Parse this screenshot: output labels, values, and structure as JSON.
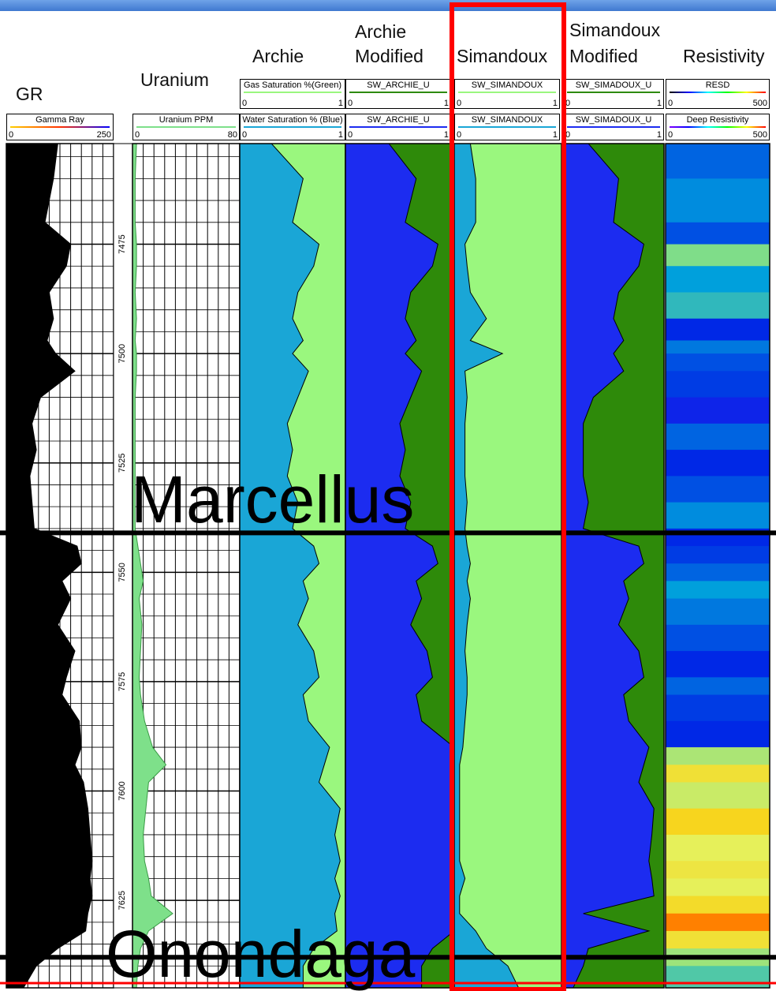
{
  "titles": {
    "gr": "GR",
    "uranium": "Uranium",
    "archie": "Archie",
    "archie_mod_1": "Archie",
    "archie_mod_2": "Modified",
    "simandoux": "Simandoux",
    "siman_mod_1": "Simandoux",
    "siman_mod_2": "Modified",
    "resistivity": "Resistivity"
  },
  "headers": {
    "gamma": {
      "name": "Gamma Ray",
      "min": "0",
      "max": "250"
    },
    "uranium": {
      "name": "Uranium PPM",
      "min": "0",
      "max": "80"
    },
    "archie_gas": {
      "name": "Gas Saturation %(Green)",
      "min": "0",
      "max": "1"
    },
    "archie_water": {
      "name": "Water Saturation % (Blue)",
      "min": "0",
      "max": "1"
    },
    "archie_mod_a": {
      "name": "SW_ARCHIE_U",
      "min": "0",
      "max": "1"
    },
    "archie_mod_b": {
      "name": "SW_ARCHIE_U",
      "min": "0",
      "max": "1"
    },
    "siman_a": {
      "name": "SW_SIMANDOUX",
      "min": "0",
      "max": "1"
    },
    "siman_b": {
      "name": "SW_SIMANDOUX",
      "min": "0",
      "max": "1"
    },
    "siman_mod_a": {
      "name": "SW_SIMADOUX_U",
      "min": "0",
      "max": "1"
    },
    "siman_mod_b": {
      "name": "SW_SIMADOUX_U",
      "min": "0",
      "max": "1"
    },
    "resd": {
      "name": "RESD",
      "min": "0",
      "max": "500"
    },
    "deep_res": {
      "name": "Deep Resistivity",
      "min": "0",
      "max": "500"
    }
  },
  "zones": {
    "marcellus": "Marcellus",
    "onondaga": "Onondaga"
  },
  "colors": {
    "gamma_fill": "#000000",
    "uranium_fill": "#7ee08a",
    "archie_water": "#1aa6d6",
    "gas_green": "#9af77e",
    "archie_mod_water": "#1c2cf0",
    "dark_green": "#2e8a0a",
    "highlight": "#ff0000",
    "formation_line": "#000000"
  },
  "chart_data": {
    "type": "area",
    "y_axis": "depth",
    "ylim": [
      7452,
      7645
    ],
    "depth_ticks": [
      7475,
      7500,
      7525,
      7550,
      7575,
      7600,
      7625
    ],
    "formation_tops": [
      {
        "name": "Marcellus",
        "depth": 7541
      },
      {
        "name": "Onondaga",
        "depth": 7638
      }
    ],
    "depth": [
      7452,
      7460,
      7470,
      7475,
      7480,
      7486,
      7492,
      7497,
      7500,
      7504,
      7510,
      7516,
      7522,
      7528,
      7534,
      7540,
      7544,
      7548,
      7552,
      7556,
      7562,
      7568,
      7574,
      7578,
      7584,
      7590,
      7594,
      7598,
      7604,
      7610,
      7616,
      7620,
      7624,
      7628,
      7632,
      7636,
      7640,
      7645
    ],
    "series": [
      {
        "name": "Gamma Ray",
        "xlim": [
          0,
          250
        ],
        "values": [
          120,
          110,
          90,
          150,
          140,
          100,
          110,
          95,
          115,
          160,
          80,
          60,
          70,
          55,
          60,
          65,
          165,
          175,
          130,
          150,
          120,
          160,
          140,
          130,
          170,
          175,
          160,
          180,
          190,
          195,
          200,
          195,
          200,
          190,
          185,
          120,
          70,
          40
        ]
      },
      {
        "name": "Uranium PPM",
        "xlim": [
          0,
          80
        ],
        "values": [
          3,
          2,
          2,
          3,
          3,
          2,
          3,
          2,
          3,
          3,
          2,
          2,
          2,
          2,
          2,
          2,
          4,
          6,
          8,
          5,
          7,
          6,
          5,
          6,
          9,
          15,
          25,
          12,
          10,
          8,
          9,
          12,
          14,
          30,
          12,
          6,
          4,
          3
        ]
      },
      {
        "name": "Gas Saturation %(Green)",
        "xlim": [
          0,
          1
        ],
        "values": [
          0.3,
          0.6,
          0.5,
          0.75,
          0.7,
          0.55,
          0.5,
          0.6,
          0.5,
          0.65,
          0.55,
          0.45,
          0.5,
          0.45,
          0.55,
          0.5,
          0.7,
          0.75,
          0.6,
          0.65,
          0.55,
          0.7,
          0.75,
          0.6,
          0.65,
          0.85,
          0.8,
          0.75,
          0.95,
          0.9,
          0.95,
          0.9,
          0.95,
          0.9,
          0.92,
          0.7,
          0.6,
          0.6
        ]
      },
      {
        "name": "SW_ARCHIE_U",
        "xlim": [
          0,
          1
        ],
        "values": [
          0.4,
          0.65,
          0.55,
          0.85,
          0.8,
          0.6,
          0.55,
          0.65,
          0.55,
          0.7,
          0.6,
          0.5,
          0.55,
          0.5,
          0.6,
          0.55,
          0.8,
          0.85,
          0.65,
          0.7,
          0.6,
          0.75,
          0.8,
          0.65,
          0.7,
          1,
          1,
          1,
          1,
          1,
          1,
          1,
          1,
          1,
          1,
          0.8,
          0.7,
          0.7
        ]
      },
      {
        "name": "SW_SIMANDOUX",
        "xlim": [
          0,
          1
        ],
        "values": [
          0.15,
          0.2,
          0.2,
          0.1,
          0.12,
          0.15,
          0.3,
          0.15,
          0.45,
          0.1,
          0.12,
          0.1,
          0.1,
          0.1,
          0.12,
          0.1,
          0.12,
          0.15,
          0.12,
          0.15,
          0.12,
          0.1,
          0.12,
          0.12,
          0.1,
          0.08,
          0.05,
          0.05,
          0.05,
          0.05,
          0.05,
          0.1,
          0.05,
          0.05,
          0.2,
          0.3,
          0.5,
          0.6
        ]
      },
      {
        "name": "SW_SIMADOUX_U",
        "xlim": [
          0,
          1
        ],
        "values": [
          0.25,
          0.55,
          0.5,
          0.8,
          0.75,
          0.55,
          0.5,
          0.6,
          0.5,
          0.6,
          0.3,
          0.2,
          0.2,
          0.2,
          0.25,
          0.2,
          0.75,
          0.8,
          0.6,
          0.65,
          0.55,
          0.75,
          0.8,
          0.6,
          0.65,
          0.85,
          0.8,
          0.75,
          0.9,
          0.88,
          0.85,
          0.88,
          0.9,
          0.2,
          0.85,
          0.25,
          0.2,
          0.1
        ]
      },
      {
        "name": "Deep Resistivity",
        "xlim": [
          0,
          500
        ],
        "values": [
          120,
          140,
          110,
          230,
          150,
          180,
          90,
          130,
          110,
          100,
          80,
          120,
          90,
          110,
          140,
          90,
          100,
          120,
          150,
          130,
          110,
          90,
          120,
          100,
          90,
          260,
          330,
          280,
          350,
          300,
          320,
          300,
          340,
          420,
          330,
          250,
          200,
          180
        ]
      }
    ]
  }
}
